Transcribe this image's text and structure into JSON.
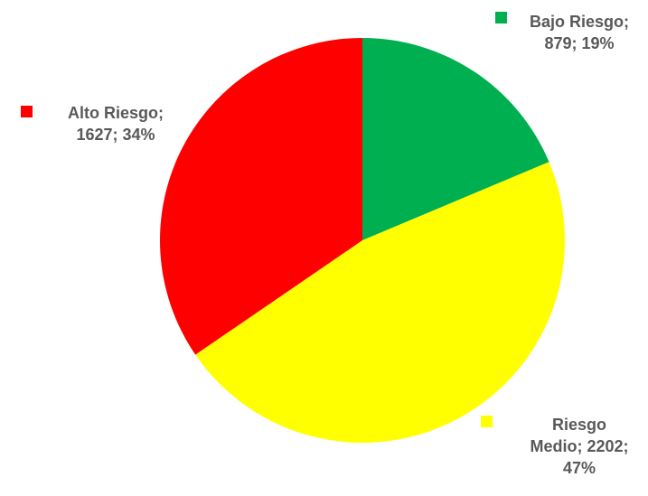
{
  "chart_data": {
    "type": "pie",
    "title": "",
    "slices": [
      {
        "name": "Bajo Riesgo",
        "value": 879,
        "percent": 19,
        "color": "#00B050"
      },
      {
        "name": "Riesgo Medio",
        "value": 2202,
        "percent": 47,
        "color": "#FFFF00"
      },
      {
        "name": "Alto Riesgo",
        "value": 1627,
        "percent": 34,
        "color": "#FF0000"
      }
    ],
    "labels": [
      {
        "lines": [
          "Bajo Riesgo;",
          "879; 19%"
        ]
      },
      {
        "lines": [
          "Riesgo",
          "Medio; 2202;",
          "47%"
        ]
      },
      {
        "lines": [
          "Alto Riesgo;",
          "1627; 34%"
        ]
      }
    ],
    "label_text_color": "#595959",
    "start_angle": "12 o'clock",
    "direction": "clockwise",
    "legend": "none"
  }
}
